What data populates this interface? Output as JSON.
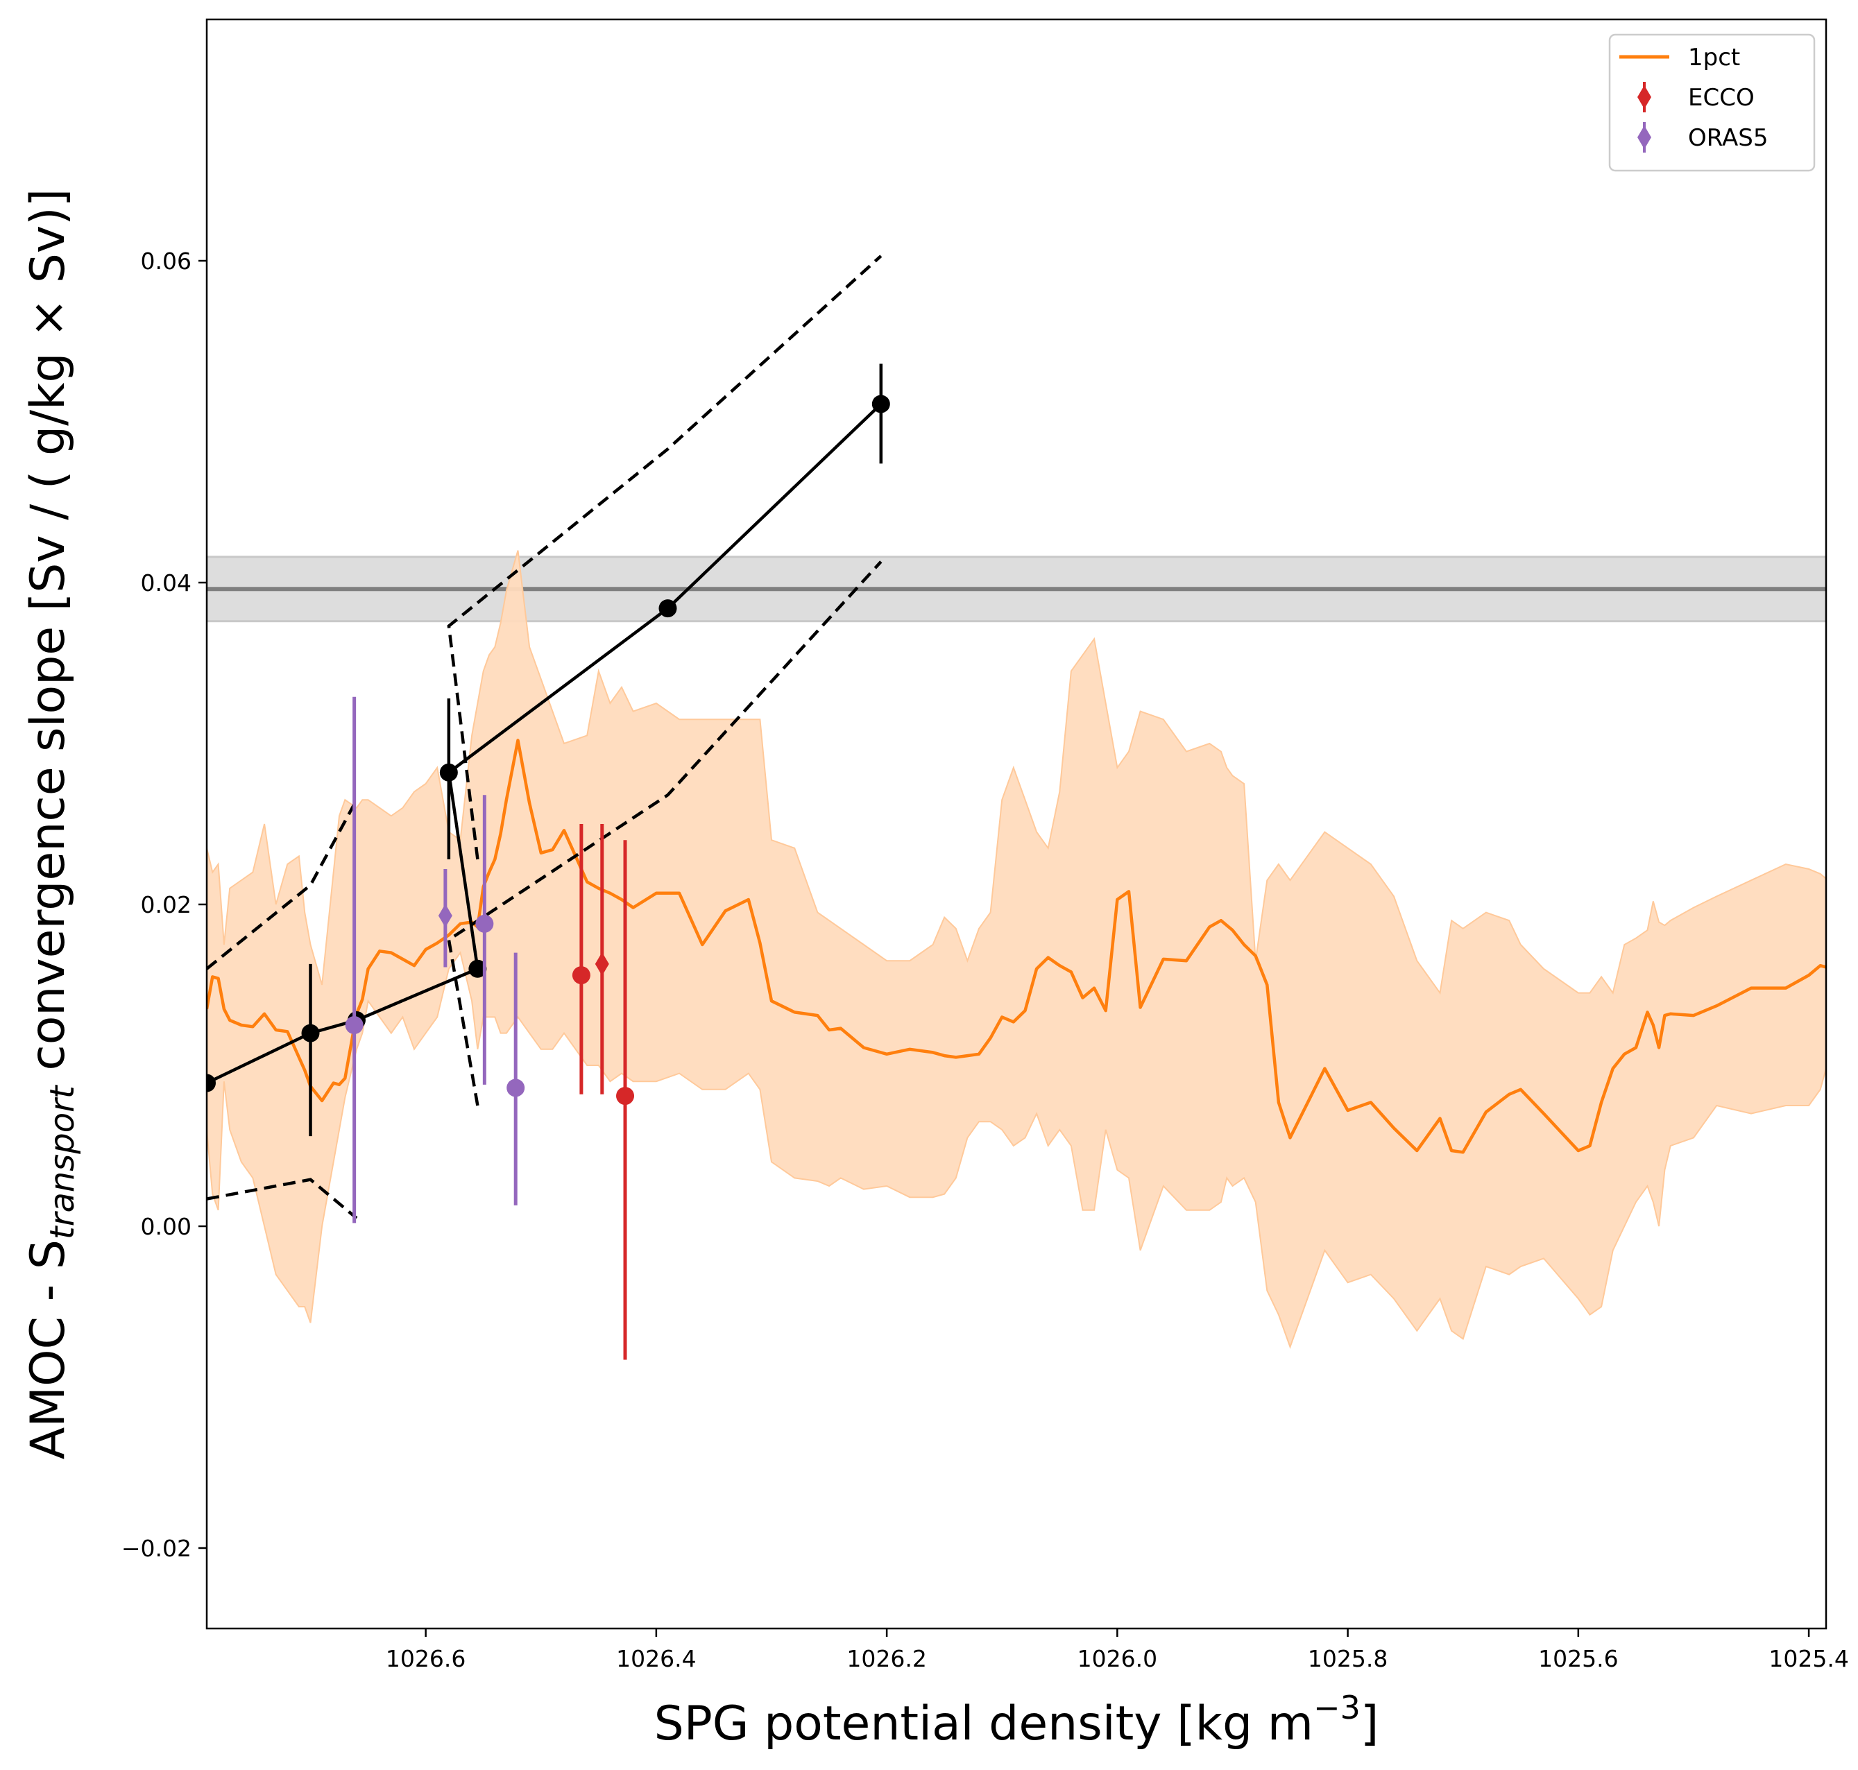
{
  "chart_data": {
    "type": "line",
    "xlabel_main": "SPG potential density [kg m",
    "xlabel_sup": "−3",
    "xlabel_end": "]",
    "ylabel_main": "AMOC - S",
    "ylabel_sub": "transport",
    "ylabel_rest": " convergence slope [Sv / ( g/kg × Sv)]",
    "xlim": [
      1026.79,
      1025.385
    ],
    "ylim": [
      -0.025,
      0.075
    ],
    "x_inverted": true,
    "xticks": [
      {
        "value": 1026.6,
        "label": "1026.6"
      },
      {
        "value": 1026.4,
        "label": "1026.4"
      },
      {
        "value": 1026.2,
        "label": "1026.2"
      },
      {
        "value": 1026.0,
        "label": "1026.0"
      },
      {
        "value": 1025.8,
        "label": "1025.8"
      },
      {
        "value": 1025.6,
        "label": "1025.6"
      },
      {
        "value": 1025.4,
        "label": "1025.4"
      }
    ],
    "yticks": [
      {
        "value": -0.02,
        "label": "−0.02"
      },
      {
        "value": 0.0,
        "label": "0.00"
      },
      {
        "value": 0.02,
        "label": "0.02"
      },
      {
        "value": 0.04,
        "label": "0.04"
      },
      {
        "value": 0.06,
        "label": "0.06"
      }
    ],
    "grid": false,
    "legend_position": "top-right",
    "legend": [
      {
        "label": "1pct",
        "marker": "line",
        "color": "#ff7f0e"
      },
      {
        "label": "ECCO",
        "marker": "diamond-errorbar",
        "color": "#d62728"
      },
      {
        "label": "ORAS5",
        "marker": "diamond-errorbar",
        "color": "#9467bd"
      }
    ],
    "reference_band": {
      "value": 0.0396,
      "low": 0.0376,
      "high": 0.0416,
      "line_color": "#7f7f7f",
      "band_color": "#d9d9d9"
    },
    "series": [
      {
        "name": "1pct",
        "kind": "line_with_band",
        "color": "#ff7f0e",
        "band_color": "#ffdbbd",
        "x": [
          1026.79,
          1026.785,
          1026.78,
          1026.775,
          1026.77,
          1026.76,
          1026.75,
          1026.74,
          1026.73,
          1026.72,
          1026.71,
          1026.705,
          1026.7,
          1026.69,
          1026.68,
          1026.675,
          1026.67,
          1026.66,
          1026.655,
          1026.65,
          1026.64,
          1026.63,
          1026.62,
          1026.61,
          1026.6,
          1026.59,
          1026.58,
          1026.57,
          1026.56,
          1026.555,
          1026.55,
          1026.545,
          1026.54,
          1026.535,
          1026.53,
          1026.52,
          1026.51,
          1026.5,
          1026.49,
          1026.48,
          1026.46,
          1026.45,
          1026.44,
          1026.43,
          1026.42,
          1026.4,
          1026.38,
          1026.36,
          1026.34,
          1026.32,
          1026.31,
          1026.3,
          1026.28,
          1026.26,
          1026.25,
          1026.24,
          1026.22,
          1026.2,
          1026.18,
          1026.16,
          1026.15,
          1026.14,
          1026.13,
          1026.12,
          1026.11,
          1026.1,
          1026.09,
          1026.08,
          1026.07,
          1026.06,
          1026.05,
          1026.04,
          1026.03,
          1026.02,
          1026.01,
          1026.0,
          1025.99,
          1025.98,
          1025.96,
          1025.94,
          1025.92,
          1025.91,
          1025.905,
          1025.9,
          1025.89,
          1025.88,
          1025.87,
          1025.86,
          1025.85,
          1025.82,
          1025.8,
          1025.78,
          1025.76,
          1025.74,
          1025.72,
          1025.71,
          1025.7,
          1025.68,
          1025.66,
          1025.65,
          1025.63,
          1025.6,
          1025.59,
          1025.58,
          1025.57,
          1025.56,
          1025.55,
          1025.54,
          1025.535,
          1025.53,
          1025.525,
          1025.52,
          1025.5,
          1025.48,
          1025.45,
          1025.42,
          1025.4,
          1025.39,
          1025.385
        ],
        "y": [
          0.0135,
          0.0155,
          0.0154,
          0.0135,
          0.0128,
          0.0125,
          0.0124,
          0.0132,
          0.0122,
          0.0121,
          0.0105,
          0.0097,
          0.0087,
          0.0078,
          0.0089,
          0.0088,
          0.0092,
          0.0132,
          0.0141,
          0.016,
          0.0171,
          0.017,
          0.0166,
          0.0162,
          0.0172,
          0.0176,
          0.0181,
          0.0188,
          0.0189,
          0.0186,
          0.0211,
          0.022,
          0.0228,
          0.0244,
          0.0265,
          0.0302,
          0.0263,
          0.0232,
          0.0234,
          0.0246,
          0.0214,
          0.021,
          0.0207,
          0.0203,
          0.0198,
          0.0207,
          0.0207,
          0.0175,
          0.0196,
          0.0203,
          0.0176,
          0.014,
          0.0133,
          0.0131,
          0.0122,
          0.0123,
          0.0111,
          0.0107,
          0.011,
          0.0108,
          0.0106,
          0.0105,
          0.0106,
          0.0107,
          0.0117,
          0.013,
          0.0127,
          0.0134,
          0.016,
          0.0167,
          0.0162,
          0.0158,
          0.0142,
          0.0148,
          0.0134,
          0.0203,
          0.0208,
          0.0136,
          0.0166,
          0.0165,
          0.0186,
          0.019,
          0.0187,
          0.0184,
          0.0175,
          0.0168,
          0.015,
          0.0077,
          0.0055,
          0.0098,
          0.0072,
          0.0077,
          0.0061,
          0.0047,
          0.0067,
          0.0047,
          0.0046,
          0.0071,
          0.0082,
          0.0085,
          0.007,
          0.0047,
          0.005,
          0.0077,
          0.0098,
          0.0107,
          0.0111,
          0.0133,
          0.0125,
          0.0111,
          0.0131,
          0.0132,
          0.0131,
          0.0137,
          0.0148,
          0.0148,
          0.0156,
          0.0162,
          0.0161
        ],
        "y_low": [
          0.006,
          0.002,
          0.001,
          0.009,
          0.006,
          0.004,
          0.003,
          0.0,
          -0.003,
          -0.004,
          -0.005,
          -0.005,
          -0.006,
          0.0,
          0.004,
          0.006,
          0.008,
          0.011,
          0.012,
          0.014,
          0.013,
          0.012,
          0.013,
          0.011,
          0.012,
          0.013,
          0.016,
          0.017,
          0.014,
          0.011,
          0.013,
          0.013,
          0.013,
          0.012,
          0.012,
          0.013,
          0.012,
          0.011,
          0.011,
          0.012,
          0.01,
          0.01,
          0.009,
          0.0095,
          0.009,
          0.009,
          0.0095,
          0.0085,
          0.0085,
          0.0095,
          0.0085,
          0.004,
          0.003,
          0.0028,
          0.0025,
          0.003,
          0.0023,
          0.0025,
          0.0018,
          0.0018,
          0.002,
          0.003,
          0.0055,
          0.0065,
          0.0065,
          0.006,
          0.005,
          0.0055,
          0.007,
          0.005,
          0.006,
          0.005,
          0.001,
          0.001,
          0.006,
          0.0035,
          0.003,
          -0.0015,
          0.0025,
          0.001,
          0.001,
          0.0015,
          0.003,
          0.0025,
          0.003,
          0.0015,
          -0.004,
          -0.0055,
          -0.0075,
          -0.0015,
          -0.0035,
          -0.003,
          -0.0045,
          -0.0065,
          -0.0045,
          -0.0065,
          -0.007,
          -0.0025,
          -0.003,
          -0.0025,
          -0.002,
          -0.0045,
          -0.0055,
          -0.005,
          -0.0015,
          0.0,
          0.0015,
          0.0025,
          0.0015,
          0.0,
          0.0035,
          0.005,
          0.0055,
          0.0075,
          0.007,
          0.0075,
          0.0075,
          0.0085,
          0.0098
        ],
        "y_high": [
          0.0235,
          0.022,
          0.0225,
          0.0175,
          0.021,
          0.0215,
          0.022,
          0.025,
          0.02,
          0.0225,
          0.023,
          0.0195,
          0.0175,
          0.015,
          0.022,
          0.0255,
          0.0265,
          0.026,
          0.0265,
          0.0265,
          0.026,
          0.0255,
          0.026,
          0.027,
          0.0275,
          0.0285,
          0.0245,
          0.024,
          0.0305,
          0.0325,
          0.0345,
          0.0355,
          0.036,
          0.0375,
          0.0395,
          0.042,
          0.036,
          0.034,
          0.032,
          0.03,
          0.0305,
          0.0345,
          0.0325,
          0.0335,
          0.032,
          0.0325,
          0.0315,
          0.0315,
          0.0315,
          0.0315,
          0.0315,
          0.024,
          0.0235,
          0.0195,
          0.019,
          0.0185,
          0.0175,
          0.0165,
          0.0165,
          0.0175,
          0.0192,
          0.0185,
          0.0165,
          0.0185,
          0.0195,
          0.0265,
          0.0285,
          0.0265,
          0.0245,
          0.0235,
          0.027,
          0.0345,
          0.0355,
          0.0365,
          0.0325,
          0.0285,
          0.0295,
          0.032,
          0.0315,
          0.0295,
          0.03,
          0.0295,
          0.0285,
          0.028,
          0.0275,
          0.0165,
          0.0215,
          0.0225,
          0.0215,
          0.0245,
          0.0235,
          0.0225,
          0.0205,
          0.0165,
          0.0145,
          0.019,
          0.0185,
          0.0195,
          0.019,
          0.0175,
          0.016,
          0.0145,
          0.0145,
          0.0155,
          0.0145,
          0.0175,
          0.0179,
          0.0184,
          0.0202,
          0.0189,
          0.0187,
          0.019,
          0.0198,
          0.0205,
          0.0215,
          0.0225,
          0.0222,
          0.0219,
          0.0216
        ]
      },
      {
        "name": "",
        "kind": "markers_line_errorbars",
        "color": "#000000",
        "x": [
          1026.79,
          1026.7,
          1026.66,
          1026.555,
          1026.58,
          1026.39,
          1026.205
        ],
        "y": [
          0.0089,
          0.012,
          0.0128,
          0.016,
          0.0282,
          0.0384,
          0.0511
        ],
        "err_low": [
          null,
          0.0056,
          null,
          null,
          0.0228,
          null,
          0.0474
        ],
        "err_high": [
          null,
          0.0163,
          null,
          null,
          0.0328,
          null,
          0.0536
        ]
      },
      {
        "name": "",
        "kind": "dashed_upper",
        "color": "#000000",
        "x": [
          1026.79,
          1026.7,
          1026.66
        ],
        "y": [
          0.016,
          0.0212,
          0.0265
        ]
      },
      {
        "name": "",
        "kind": "dashed_upper",
        "color": "#000000",
        "x": [
          1026.555,
          1026.58,
          1026.39,
          1026.205
        ],
        "y": [
          0.0228,
          0.0373,
          0.0483,
          0.0603
        ]
      },
      {
        "name": "",
        "kind": "dashed_lower",
        "color": "#000000",
        "x": [
          1026.79,
          1026.7,
          1026.66
        ],
        "y": [
          0.0017,
          0.0029,
          0.0005
        ]
      },
      {
        "name": "",
        "kind": "dashed_lower",
        "color": "#000000",
        "x": [
          1026.555,
          1026.58,
          1026.39,
          1026.205
        ],
        "y": [
          0.0075,
          0.0178,
          0.0268,
          0.0413
        ]
      },
      {
        "name": "ECCO",
        "kind": "points_errorbars",
        "color": "#d62728",
        "points": [
          {
            "x": 1026.465,
            "y": 0.0156,
            "low": 0.0082,
            "high": 0.025,
            "marker": "circle"
          },
          {
            "x": 1026.447,
            "y": 0.0163,
            "low": 0.0082,
            "high": 0.025,
            "marker": "diamond"
          },
          {
            "x": 1026.427,
            "y": 0.0081,
            "low": -0.0083,
            "high": 0.024,
            "marker": "circle"
          }
        ]
      },
      {
        "name": "ORAS5",
        "kind": "points_errorbars",
        "color": "#9467bd",
        "points": [
          {
            "x": 1026.662,
            "y": 0.0125,
            "low": 0.0002,
            "high": 0.0329,
            "marker": "circle"
          },
          {
            "x": 1026.583,
            "y": 0.0193,
            "low": 0.0161,
            "high": 0.0222,
            "marker": "diamond"
          },
          {
            "x": 1026.549,
            "y": 0.0188,
            "low": 0.0088,
            "high": 0.0268,
            "marker": "circle"
          },
          {
            "x": 1026.522,
            "y": 0.0086,
            "low": 0.0013,
            "high": 0.017,
            "marker": "circle"
          }
        ]
      }
    ]
  }
}
